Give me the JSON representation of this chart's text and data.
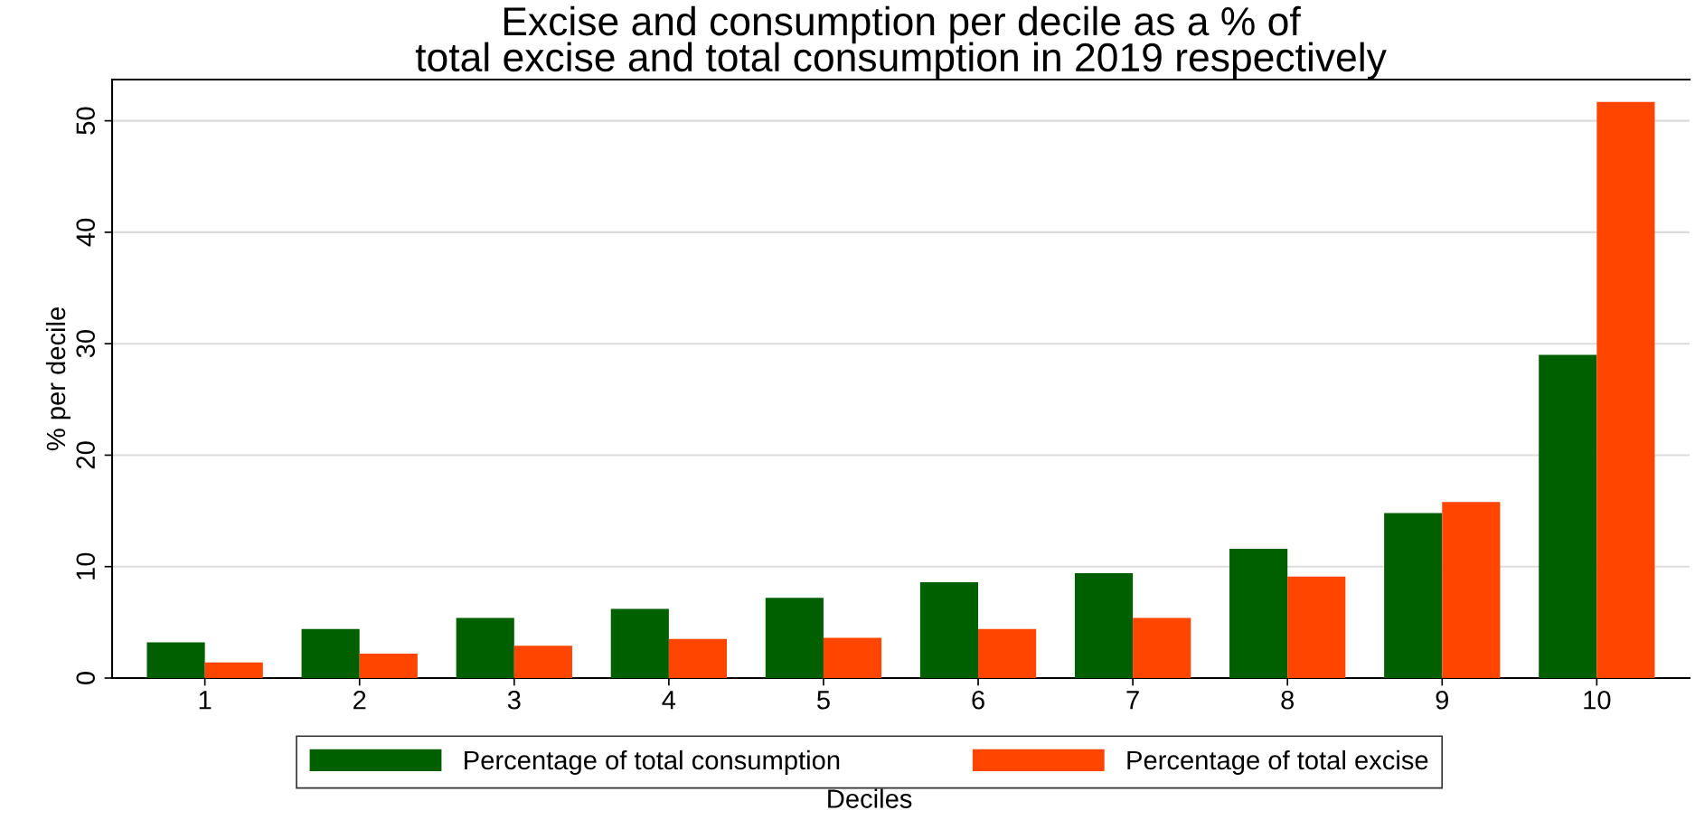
{
  "chart_data": {
    "type": "bar",
    "title": "Excise and consumption per decile as a % of\ntotal excise and total consumption in 2019 respectively",
    "xlabel": "Deciles",
    "ylabel": "% per decile",
    "categories": [
      "1",
      "2",
      "3",
      "4",
      "5",
      "6",
      "7",
      "8",
      "9",
      "10"
    ],
    "series": [
      {
        "name": "Percentage of total consumption",
        "color": "#006000",
        "values": [
          3.2,
          4.4,
          5.4,
          6.2,
          7.2,
          8.6,
          9.4,
          11.6,
          14.8,
          29.0
        ]
      },
      {
        "name": "Percentage of total excise",
        "color": "#ff4500",
        "values": [
          1.4,
          2.2,
          2.9,
          3.5,
          3.6,
          4.4,
          5.4,
          9.1,
          15.8,
          51.7
        ]
      }
    ],
    "ylim": [
      0,
      53.7
    ],
    "yticks": [
      0,
      10,
      20,
      30,
      40,
      50
    ],
    "grid": "y",
    "legend": "bottom"
  }
}
